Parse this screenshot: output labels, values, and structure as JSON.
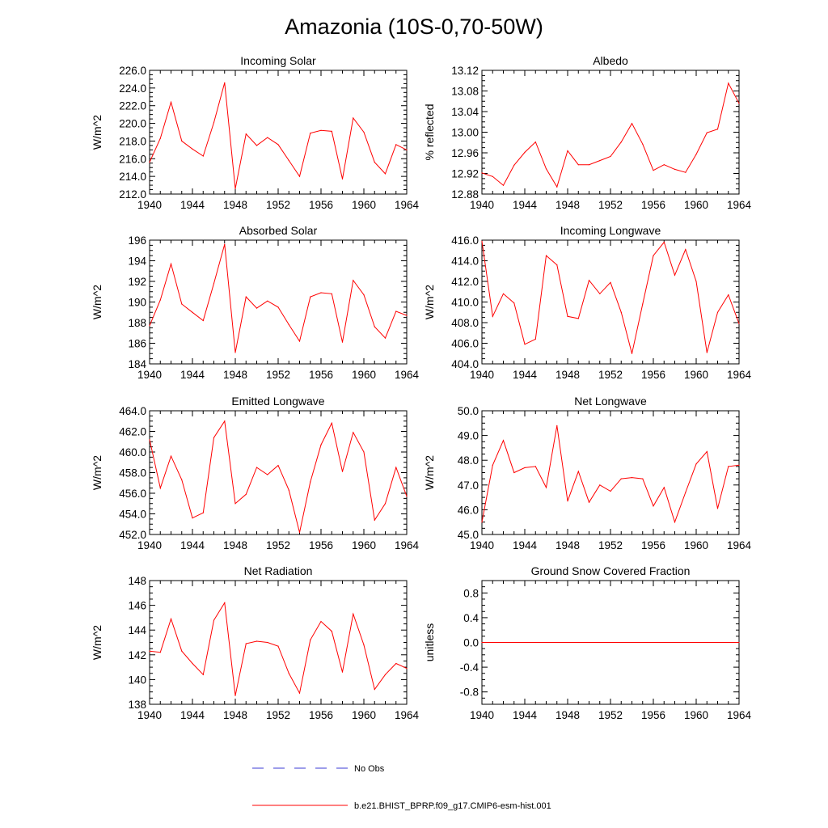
{
  "title": "Amazonia (10S-0,70-50W)",
  "colors": {
    "model": "#ff0000",
    "obs": "#3b3bd6",
    "axis": "#000000"
  },
  "legend": {
    "obs_label": "No Obs",
    "model_label": "b.e21.BHIST_BPRP.f09_g17.CMIP6-esm-hist.001"
  },
  "chart_data": [
    {
      "type": "line",
      "title": "Incoming Solar",
      "xlabel": "",
      "ylabel": "W/m^2",
      "xlim": [
        1940,
        1964
      ],
      "ylim": [
        212,
        226
      ],
      "xticks": [
        "1940",
        "1944",
        "1948",
        "1952",
        "1956",
        "1960",
        "1964"
      ],
      "yticks": [
        "212.0",
        "214.0",
        "216.0",
        "218.0",
        "220.0",
        "222.0",
        "224.0",
        "226.0"
      ],
      "x": [
        1940,
        1941,
        1942,
        1943,
        1944,
        1945,
        1946,
        1947,
        1948,
        1949,
        1950,
        1951,
        1952,
        1953,
        1954,
        1955,
        1956,
        1957,
        1958,
        1959,
        1960,
        1961,
        1962,
        1963,
        1964
      ],
      "y": [
        215.6,
        218.3,
        222.4,
        218.0,
        217.1,
        216.3,
        220.1,
        224.6,
        212.6,
        218.8,
        217.5,
        218.4,
        217.6,
        215.8,
        214.0,
        218.9,
        219.2,
        219.1,
        213.7,
        220.6,
        219.0,
        215.6,
        214.3,
        217.6,
        217.0
      ]
    },
    {
      "type": "line",
      "title": "Albedo",
      "xlabel": "",
      "ylabel": "% reflected",
      "xlim": [
        1940,
        1964
      ],
      "ylim": [
        12.88,
        13.12
      ],
      "xticks": [
        "1940",
        "1944",
        "1948",
        "1952",
        "1956",
        "1960",
        "1964"
      ],
      "yticks": [
        "12.88",
        "12.92",
        "12.96",
        "13.00",
        "13.04",
        "13.08",
        "13.12"
      ],
      "x": [
        1940,
        1941,
        1942,
        1943,
        1944,
        1945,
        1946,
        1947,
        1948,
        1949,
        1950,
        1951,
        1952,
        1953,
        1954,
        1955,
        1956,
        1957,
        1958,
        1959,
        1960,
        1961,
        1962,
        1963,
        1964
      ],
      "y": [
        12.921,
        12.914,
        12.897,
        12.936,
        12.961,
        12.981,
        12.929,
        12.894,
        12.964,
        12.937,
        12.937,
        12.945,
        12.953,
        12.981,
        13.017,
        12.977,
        12.926,
        12.937,
        12.928,
        12.922,
        12.957,
        12.999,
        13.006,
        13.095,
        13.056
      ]
    },
    {
      "type": "line",
      "title": "Absorbed Solar",
      "xlabel": "",
      "ylabel": "W/m^2",
      "xlim": [
        1940,
        1964
      ],
      "ylim": [
        184,
        196
      ],
      "xticks": [
        "1940",
        "1944",
        "1948",
        "1952",
        "1956",
        "1960",
        "1964"
      ],
      "yticks": [
        "184",
        "186",
        "188",
        "190",
        "192",
        "194",
        "196"
      ],
      "x": [
        1940,
        1941,
        1942,
        1943,
        1944,
        1945,
        1946,
        1947,
        1948,
        1949,
        1950,
        1951,
        1952,
        1953,
        1954,
        1955,
        1956,
        1957,
        1958,
        1959,
        1960,
        1961,
        1962,
        1963,
        1964
      ],
      "y": [
        187.7,
        190.2,
        193.7,
        189.8,
        189.0,
        188.2,
        191.8,
        195.6,
        185.1,
        190.5,
        189.4,
        190.1,
        189.5,
        187.8,
        186.2,
        190.5,
        190.9,
        190.8,
        186.1,
        192.1,
        190.7,
        187.6,
        186.5,
        189.1,
        188.7
      ]
    },
    {
      "type": "line",
      "title": "Incoming Longwave",
      "xlabel": "",
      "ylabel": "W/m^2",
      "xlim": [
        1940,
        1964
      ],
      "ylim": [
        404,
        416
      ],
      "xticks": [
        "1940",
        "1944",
        "1948",
        "1952",
        "1956",
        "1960",
        "1964"
      ],
      "yticks": [
        "404.0",
        "406.0",
        "408.0",
        "410.0",
        "412.0",
        "414.0",
        "416.0"
      ],
      "x": [
        1940,
        1941,
        1942,
        1943,
        1944,
        1945,
        1946,
        1947,
        1948,
        1949,
        1950,
        1951,
        1952,
        1953,
        1954,
        1955,
        1956,
        1957,
        1958,
        1959,
        1960,
        1961,
        1962,
        1963,
        1964
      ],
      "y": [
        415.9,
        408.6,
        410.8,
        409.9,
        405.9,
        406.4,
        414.5,
        413.6,
        408.6,
        408.4,
        412.1,
        410.8,
        411.9,
        409.0,
        405.0,
        409.8,
        414.5,
        415.8,
        412.6,
        415.1,
        412.0,
        405.1,
        409.0,
        410.7,
        407.9
      ]
    },
    {
      "type": "line",
      "title": "Emitted Longwave",
      "xlabel": "",
      "ylabel": "W/m^2",
      "xlim": [
        1940,
        1964
      ],
      "ylim": [
        452,
        464
      ],
      "xticks": [
        "1940",
        "1944",
        "1948",
        "1952",
        "1956",
        "1960",
        "1964"
      ],
      "yticks": [
        "452.0",
        "454.0",
        "456.0",
        "458.0",
        "460.0",
        "462.0",
        "464.0"
      ],
      "x": [
        1940,
        1941,
        1942,
        1943,
        1944,
        1945,
        1946,
        1947,
        1948,
        1949,
        1950,
        1951,
        1952,
        1953,
        1954,
        1955,
        1956,
        1957,
        1958,
        1959,
        1960,
        1961,
        1962,
        1963,
        1964
      ],
      "y": [
        461.2,
        456.5,
        459.6,
        457.3,
        453.6,
        454.1,
        461.4,
        463.0,
        455.0,
        455.9,
        458.5,
        457.8,
        458.7,
        456.3,
        452.2,
        457.1,
        460.7,
        462.8,
        458.1,
        461.9,
        460.0,
        453.4,
        455.0,
        458.5,
        455.7
      ]
    },
    {
      "type": "line",
      "title": "Net Longwave",
      "xlabel": "",
      "ylabel": "W/m^2",
      "xlim": [
        1940,
        1964
      ],
      "ylim": [
        45,
        50
      ],
      "xticks": [
        "1940",
        "1944",
        "1948",
        "1952",
        "1956",
        "1960",
        "1964"
      ],
      "yticks": [
        "45.0",
        "46.0",
        "47.0",
        "48.0",
        "49.0",
        "50.0"
      ],
      "x": [
        1940,
        1941,
        1942,
        1943,
        1944,
        1945,
        1946,
        1947,
        1948,
        1949,
        1950,
        1951,
        1952,
        1953,
        1954,
        1955,
        1956,
        1957,
        1958,
        1959,
        1960,
        1961,
        1962,
        1963,
        1964
      ],
      "y": [
        45.5,
        47.8,
        48.8,
        47.5,
        47.7,
        47.75,
        46.9,
        49.4,
        46.35,
        47.55,
        46.3,
        47.0,
        46.75,
        47.25,
        47.3,
        47.25,
        46.15,
        46.9,
        45.5,
        46.7,
        47.85,
        48.35,
        46.05,
        47.75,
        47.8
      ]
    },
    {
      "type": "line",
      "title": "Net Radiation",
      "xlabel": "",
      "ylabel": "W/m^2",
      "xlim": [
        1940,
        1964
      ],
      "ylim": [
        138,
        148
      ],
      "xticks": [
        "1940",
        "1944",
        "1948",
        "1952",
        "1956",
        "1960",
        "1964"
      ],
      "yticks": [
        "138",
        "140",
        "142",
        "144",
        "146",
        "148"
      ],
      "x": [
        1940,
        1941,
        1942,
        1943,
        1944,
        1945,
        1946,
        1947,
        1948,
        1949,
        1950,
        1951,
        1952,
        1953,
        1954,
        1955,
        1956,
        1957,
        1958,
        1959,
        1960,
        1961,
        1962,
        1963,
        1964
      ],
      "y": [
        142.3,
        142.2,
        144.9,
        142.3,
        141.3,
        140.4,
        144.8,
        146.2,
        138.7,
        142.9,
        143.1,
        143.0,
        142.7,
        140.5,
        138.9,
        143.2,
        144.7,
        143.9,
        140.6,
        145.3,
        142.8,
        139.2,
        140.4,
        141.3,
        140.9
      ]
    },
    {
      "type": "line",
      "title": "Ground Snow Covered Fraction",
      "xlabel": "",
      "ylabel": "unitless",
      "xlim": [
        1940,
        1964
      ],
      "ylim": [
        -1.0,
        1.0
      ],
      "xticks": [
        "1940",
        "1944",
        "1948",
        "1952",
        "1956",
        "1960",
        "1964"
      ],
      "yticks": [
        "-0.8",
        "-0.4",
        "0.0",
        "0.4",
        "0.8"
      ],
      "ytick_values": [
        -0.8,
        -0.4,
        0.0,
        0.4,
        0.8
      ],
      "x": [
        1940,
        1941,
        1942,
        1943,
        1944,
        1945,
        1946,
        1947,
        1948,
        1949,
        1950,
        1951,
        1952,
        1953,
        1954,
        1955,
        1956,
        1957,
        1958,
        1959,
        1960,
        1961,
        1962,
        1963,
        1964
      ],
      "y": [
        0,
        0,
        0,
        0,
        0,
        0,
        0,
        0,
        0,
        0,
        0,
        0,
        0,
        0,
        0,
        0,
        0,
        0,
        0,
        0,
        0,
        0,
        0,
        0,
        0
      ]
    }
  ]
}
